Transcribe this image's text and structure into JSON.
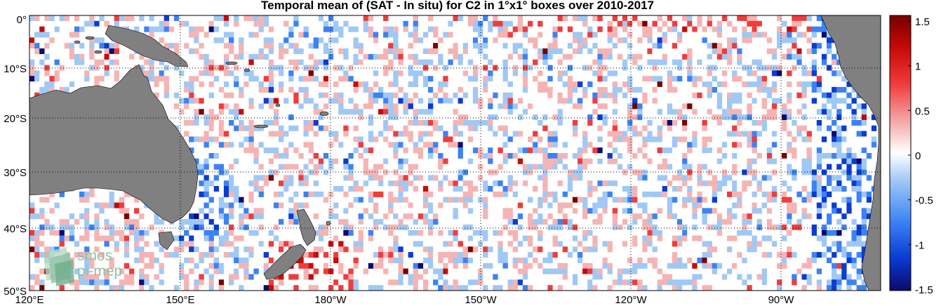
{
  "title": "Temporal mean of (SAT - In situ) for C2 in 1°x1° boxes over 2010-2017",
  "map": {
    "lat_labels": [
      "0°",
      "10°S",
      "20°S",
      "30°S",
      "40°S",
      "50°S"
    ],
    "lon_labels": [
      "120°E",
      "150°E",
      "180°W",
      "150°W",
      "120°W",
      "90°W"
    ],
    "extent": {
      "lon_min": 120,
      "lon_max": 290,
      "lat_min": -50,
      "lat_max": 0
    },
    "grid": "dotted",
    "land_color": "#808080"
  },
  "colorbar": {
    "ticks": [
      "1.5",
      "1",
      "0.5",
      "0",
      "-0.5",
      "-1",
      "-1.5"
    ],
    "range": [
      -1.5,
      1.5
    ],
    "colormap": [
      "#0a0a6e",
      "#0a3cd2",
      "#3c82f5",
      "#a0c8f5",
      "#ffffff",
      "#f5b4b4",
      "#f03c3c",
      "#c80a0a",
      "#780000"
    ]
  },
  "logo": {
    "line1": "smos",
    "line2": "pi-mep"
  }
}
